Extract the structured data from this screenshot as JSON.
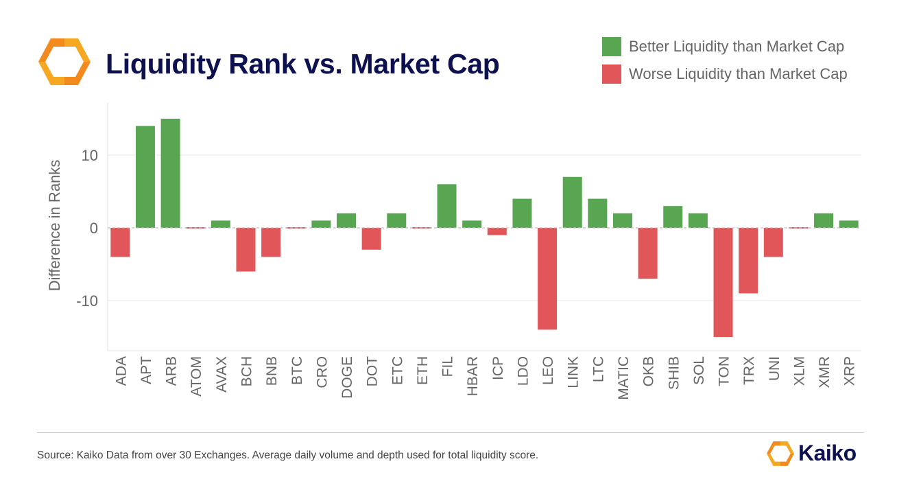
{
  "header": {
    "title": "Liquidity Rank vs. Market Cap",
    "logo_icon": "kaiko-logo-icon"
  },
  "legend": {
    "items": [
      {
        "label": "Better Liquidity than Market Cap",
        "color": "#58a552"
      },
      {
        "label": "Worse Liquidity than Market Cap",
        "color": "#e15759"
      }
    ]
  },
  "chart_data": {
    "type": "bar",
    "title": "Liquidity Rank vs. Market Cap",
    "xlabel": "",
    "ylabel": "Difference in Ranks",
    "ylim": [
      -17,
      17
    ],
    "yticks": [
      10,
      0,
      -10
    ],
    "grid": true,
    "legend_position": "top-right",
    "colors": {
      "positive": "#58a552",
      "negative": "#e15759"
    },
    "categories": [
      "ADA",
      "APT",
      "ARB",
      "ATOM",
      "AVAX",
      "BCH",
      "BNB",
      "BTC",
      "CRO",
      "DOGE",
      "DOT",
      "ETC",
      "ETH",
      "FIL",
      "HBAR",
      "ICP",
      "LDO",
      "LEO",
      "LINK",
      "LTC",
      "MATIC",
      "OKB",
      "SHIB",
      "SOL",
      "TON",
      "TRX",
      "UNI",
      "XLM",
      "XMR",
      "XRP"
    ],
    "values": [
      -4,
      14,
      15,
      0,
      1,
      -6,
      -4,
      0,
      1,
      2,
      -3,
      2,
      0,
      6,
      1,
      -1,
      4,
      -14,
      7,
      4,
      2,
      -7,
      3,
      2,
      -15,
      -9,
      -4,
      0,
      2,
      1
    ]
  },
  "footer": {
    "source": "Source: Kaiko Data from over 30 Exchanges. Average daily volume and depth used for total liquidity score.",
    "brand_name": "Kaiko",
    "brand_icon": "kaiko-logo-icon"
  }
}
